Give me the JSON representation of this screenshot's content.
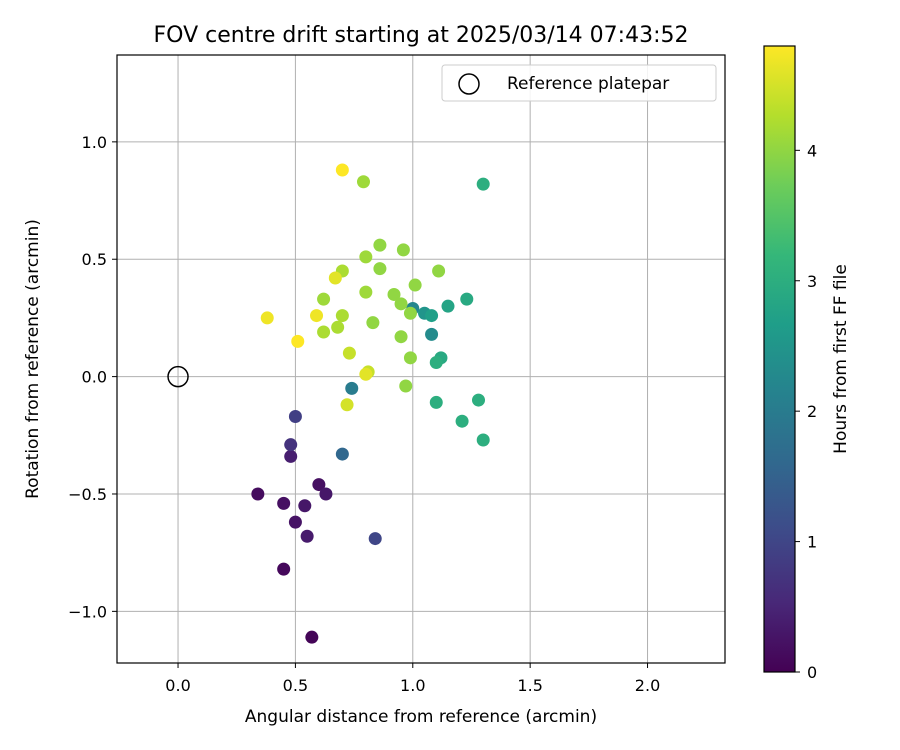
{
  "chart_data": {
    "type": "scatter",
    "title": "FOV centre drift starting at 2025/03/14 07:43:52",
    "xlabel": "Angular distance from reference (arcmin)",
    "ylabel": "Rotation from reference (arcmin)",
    "xlim": [
      -0.26,
      2.33
    ],
    "ylim": [
      -1.22,
      1.37
    ],
    "xticks": [
      0.0,
      0.5,
      1.0,
      1.5,
      2.0
    ],
    "xtick_labels": [
      "0.0",
      "0.5",
      "1.0",
      "1.5",
      "2.0"
    ],
    "yticks": [
      -1.0,
      -0.5,
      0.0,
      0.5,
      1.0
    ],
    "ytick_labels": [
      "−1.0",
      "−0.5",
      "0.0",
      "0.5",
      "1.0"
    ],
    "grid": true,
    "legend": {
      "position": "top-right",
      "entries": [
        "Reference platepar"
      ]
    },
    "reference_point": {
      "x": 0.0,
      "y": 0.0
    },
    "colorbar": {
      "label": "Hours from first FF file",
      "colormap": "viridis",
      "range": [
        0,
        4.8
      ],
      "ticks": [
        0,
        1,
        2,
        3,
        4
      ],
      "tick_labels": [
        "0",
        "1",
        "2",
        "3",
        "4"
      ]
    },
    "points": [
      {
        "x": 0.57,
        "y": -1.11,
        "hours": 0.05
      },
      {
        "x": 0.45,
        "y": -0.82,
        "hours": 0.1
      },
      {
        "x": 0.34,
        "y": -0.5,
        "hours": 0.15
      },
      {
        "x": 0.45,
        "y": -0.54,
        "hours": 0.2
      },
      {
        "x": 0.5,
        "y": -0.62,
        "hours": 0.25
      },
      {
        "x": 0.54,
        "y": -0.55,
        "hours": 0.3
      },
      {
        "x": 0.55,
        "y": -0.68,
        "hours": 0.35
      },
      {
        "x": 0.6,
        "y": -0.46,
        "hours": 0.2
      },
      {
        "x": 0.63,
        "y": -0.5,
        "hours": 0.3
      },
      {
        "x": 0.48,
        "y": -0.34,
        "hours": 0.4
      },
      {
        "x": 0.48,
        "y": -0.29,
        "hours": 0.7
      },
      {
        "x": 0.5,
        "y": -0.17,
        "hours": 0.9
      },
      {
        "x": 0.84,
        "y": -0.69,
        "hours": 1.0
      },
      {
        "x": 0.7,
        "y": -0.33,
        "hours": 1.6
      },
      {
        "x": 0.74,
        "y": -0.05,
        "hours": 2.0
      },
      {
        "x": 1.0,
        "y": 0.29,
        "hours": 2.2
      },
      {
        "x": 1.08,
        "y": 0.18,
        "hours": 2.3
      },
      {
        "x": 1.05,
        "y": 0.27,
        "hours": 2.5
      },
      {
        "x": 1.08,
        "y": 0.26,
        "hours": 2.7
      },
      {
        "x": 1.15,
        "y": 0.3,
        "hours": 2.8
      },
      {
        "x": 1.23,
        "y": 0.33,
        "hours": 2.9
      },
      {
        "x": 1.12,
        "y": 0.08,
        "hours": 2.9
      },
      {
        "x": 1.1,
        "y": 0.06,
        "hours": 3.0
      },
      {
        "x": 1.1,
        "y": -0.11,
        "hours": 3.0
      },
      {
        "x": 1.21,
        "y": -0.19,
        "hours": 3.0
      },
      {
        "x": 1.28,
        "y": -0.1,
        "hours": 3.0
      },
      {
        "x": 1.3,
        "y": -0.27,
        "hours": 3.0
      },
      {
        "x": 1.3,
        "y": 0.82,
        "hours": 3.0
      },
      {
        "x": 0.79,
        "y": 0.83,
        "hours": 4.1
      },
      {
        "x": 0.86,
        "y": 0.56,
        "hours": 4.0
      },
      {
        "x": 0.96,
        "y": 0.54,
        "hours": 4.0
      },
      {
        "x": 0.8,
        "y": 0.51,
        "hours": 4.1
      },
      {
        "x": 0.86,
        "y": 0.46,
        "hours": 4.0
      },
      {
        "x": 1.11,
        "y": 0.45,
        "hours": 4.0
      },
      {
        "x": 1.01,
        "y": 0.39,
        "hours": 4.0
      },
      {
        "x": 0.92,
        "y": 0.35,
        "hours": 4.0
      },
      {
        "x": 0.95,
        "y": 0.31,
        "hours": 4.0
      },
      {
        "x": 0.99,
        "y": 0.27,
        "hours": 4.0
      },
      {
        "x": 0.83,
        "y": 0.23,
        "hours": 4.0
      },
      {
        "x": 0.95,
        "y": 0.17,
        "hours": 4.0
      },
      {
        "x": 0.99,
        "y": 0.08,
        "hours": 4.0
      },
      {
        "x": 0.97,
        "y": -0.04,
        "hours": 4.0
      },
      {
        "x": 0.8,
        "y": 0.36,
        "hours": 4.1
      },
      {
        "x": 0.62,
        "y": 0.33,
        "hours": 4.1
      },
      {
        "x": 0.7,
        "y": 0.45,
        "hours": 4.2
      },
      {
        "x": 0.7,
        "y": 0.26,
        "hours": 4.2
      },
      {
        "x": 0.68,
        "y": 0.21,
        "hours": 4.2
      },
      {
        "x": 0.62,
        "y": 0.19,
        "hours": 4.2
      },
      {
        "x": 0.73,
        "y": 0.1,
        "hours": 4.4
      },
      {
        "x": 0.81,
        "y": 0.02,
        "hours": 4.4
      },
      {
        "x": 0.72,
        "y": -0.12,
        "hours": 4.5
      },
      {
        "x": 0.67,
        "y": 0.42,
        "hours": 4.6
      },
      {
        "x": 0.8,
        "y": 0.01,
        "hours": 4.6
      },
      {
        "x": 0.59,
        "y": 0.26,
        "hours": 4.7
      },
      {
        "x": 0.38,
        "y": 0.25,
        "hours": 4.7
      },
      {
        "x": 0.51,
        "y": 0.15,
        "hours": 4.8
      },
      {
        "x": 0.7,
        "y": 0.88,
        "hours": 4.8
      }
    ]
  }
}
